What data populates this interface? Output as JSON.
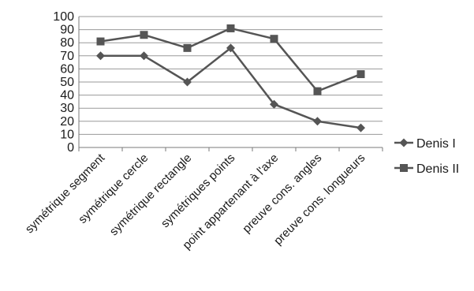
{
  "chart_data": {
    "type": "line",
    "categories": [
      "symétrique segment",
      "symétrique cercle",
      "symétrique rectangle",
      "symétriques points",
      "point appartenant à l'axe",
      "preuve cons. angles",
      "preuve cons. longueurs"
    ],
    "series": [
      {
        "name": "Denis I",
        "values": [
          70,
          70,
          50,
          76,
          33,
          20,
          15
        ],
        "marker": "diamond",
        "color": "#555555"
      },
      {
        "name": "Denis II",
        "values": [
          81,
          86,
          76,
          91,
          83,
          43,
          56
        ],
        "marker": "square",
        "color": "#555555"
      }
    ],
    "ylim": [
      0,
      100
    ],
    "yticks": [
      "0",
      "10",
      "20",
      "30",
      "40",
      "50",
      "60",
      "70",
      "80",
      "90",
      "100"
    ],
    "grid": true,
    "legend_position": "right"
  }
}
